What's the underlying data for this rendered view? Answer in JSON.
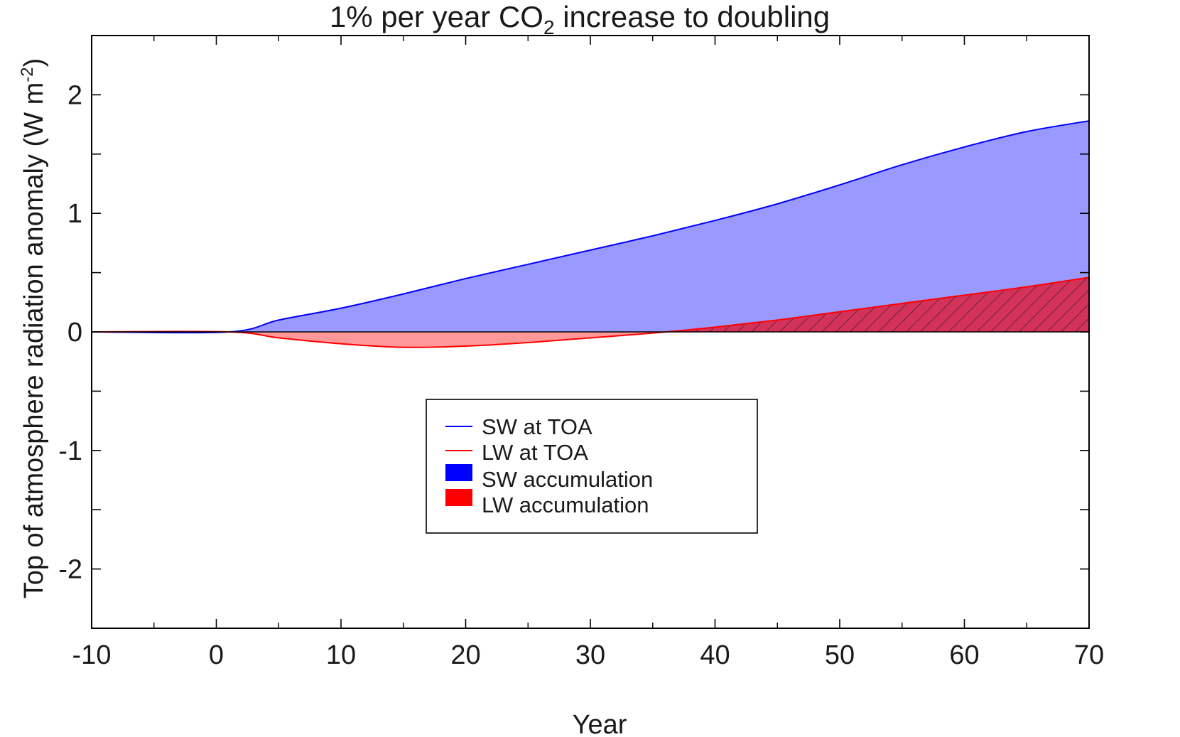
{
  "chart_data": {
    "type": "area",
    "title": "1% per year CO",
    "title_subscript": "2",
    "title_suffix": " increase to doubling",
    "xlabel": "Year",
    "ylabel": "Top of atmosphere radiation anomaly (W m",
    "ylabel_superscript": "-2",
    "ylabel_suffix": ")",
    "xlim": [
      -10,
      70
    ],
    "ylim": [
      -2.5,
      2.5
    ],
    "x_ticks": [
      "-10",
      "0",
      "10",
      "20",
      "30",
      "40",
      "50",
      "60",
      "70"
    ],
    "y_ticks": [
      "-2",
      "-1",
      "0",
      "1",
      "2"
    ],
    "series": [
      {
        "name": "SW at TOA",
        "color": "#0000ff",
        "fill_color": "#9999ff",
        "x": [
          -10,
          1,
          5,
          10,
          15,
          20,
          25,
          30,
          35,
          40,
          45,
          50,
          55,
          60,
          65,
          70
        ],
        "values": [
          0,
          0,
          0.1,
          0.2,
          0.32,
          0.45,
          0.57,
          0.69,
          0.81,
          0.94,
          1.08,
          1.24,
          1.41,
          1.56,
          1.69,
          1.78
        ]
      },
      {
        "name": "LW at TOA",
        "color": "#ff0000",
        "fill_negative_color": "#ff9999",
        "fill_positive_color": "#d4325a",
        "hatched_positive": true,
        "x": [
          -10,
          1,
          5,
          10,
          15,
          20,
          25,
          30,
          35,
          40,
          45,
          50,
          55,
          60,
          65,
          70
        ],
        "values": [
          0,
          0,
          -0.05,
          -0.1,
          -0.13,
          -0.12,
          -0.09,
          -0.05,
          -0.01,
          0.04,
          0.1,
          0.17,
          0.24,
          0.31,
          0.38,
          0.46
        ]
      }
    ],
    "legend": {
      "position": "lower-center",
      "entries": [
        {
          "label": "SW at TOA",
          "kind": "line",
          "color": "#0000ff"
        },
        {
          "label": "LW at TOA",
          "kind": "line",
          "color": "#ff0000"
        },
        {
          "label": "SW accumulation",
          "kind": "patch",
          "color": "#0000ff"
        },
        {
          "label": "LW accumulation",
          "kind": "patch",
          "color": "#ff0000"
        }
      ]
    },
    "grid": false
  }
}
